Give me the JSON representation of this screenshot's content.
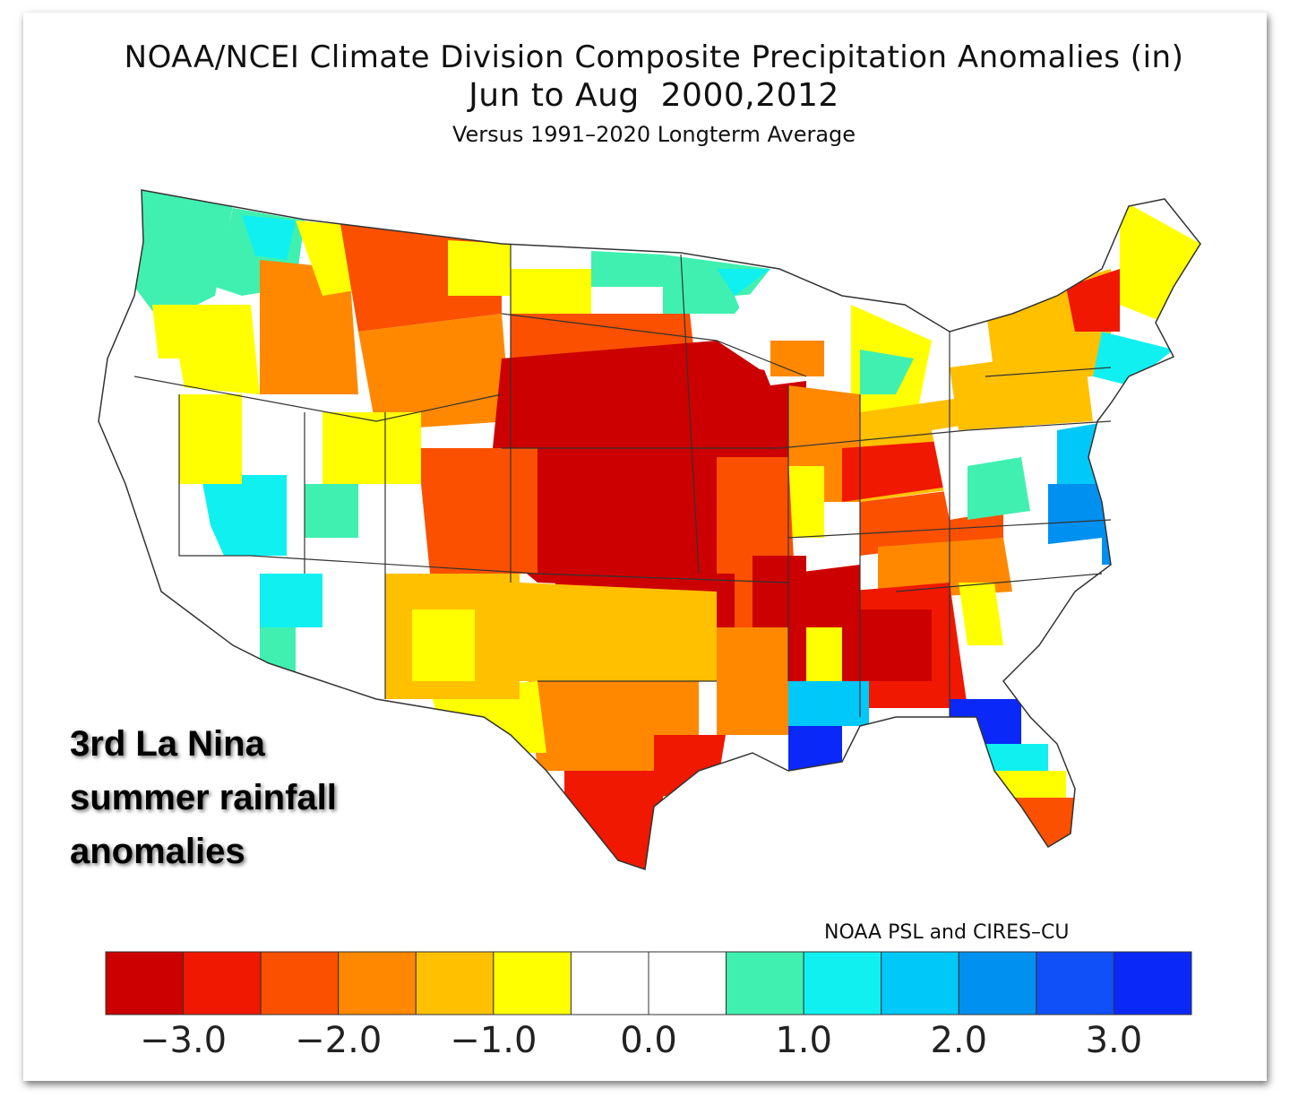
{
  "title": {
    "line1": "NOAA/NCEI Climate Division Composite Precipitation Anomalies (in)",
    "line2": "Jun to Aug  2000,2012",
    "line3": "Versus 1991–2020 Longterm Average"
  },
  "overlay_text": {
    "line1": "3rd La Nina",
    "line2": "summer rainfall",
    "line3": "anomalies"
  },
  "credit": "NOAA PSL and CIRES–CU",
  "colorbar": {
    "colors": [
      "#cc0000",
      "#f01800",
      "#fa5000",
      "#ff8800",
      "#ffc000",
      "#ffff00",
      "#ffffff",
      "#ffffff",
      "#40f0b0",
      "#10f0f0",
      "#00c8f8",
      "#0090f0",
      "#1050f8",
      "#0a28f8"
    ],
    "ticks": [
      "−3.0",
      "−2.0",
      "−1.0",
      "0.0",
      "1.0",
      "2.0",
      "3.0"
    ]
  },
  "legend": {
    "colors": {
      "dark_red": "#cc0000",
      "red": "#f01800",
      "red_orange": "#fa5000",
      "orange": "#ff8800",
      "gold": "#ffc000",
      "yellow": "#ffff00",
      "white": "#ffffff",
      "aqua_green": "#40f0b0",
      "cyan": "#10f0f0",
      "sky": "#00c8f8",
      "blue": "#0090f0",
      "deep_blue": "#1050f8",
      "navy": "#0a28f8"
    }
  }
}
